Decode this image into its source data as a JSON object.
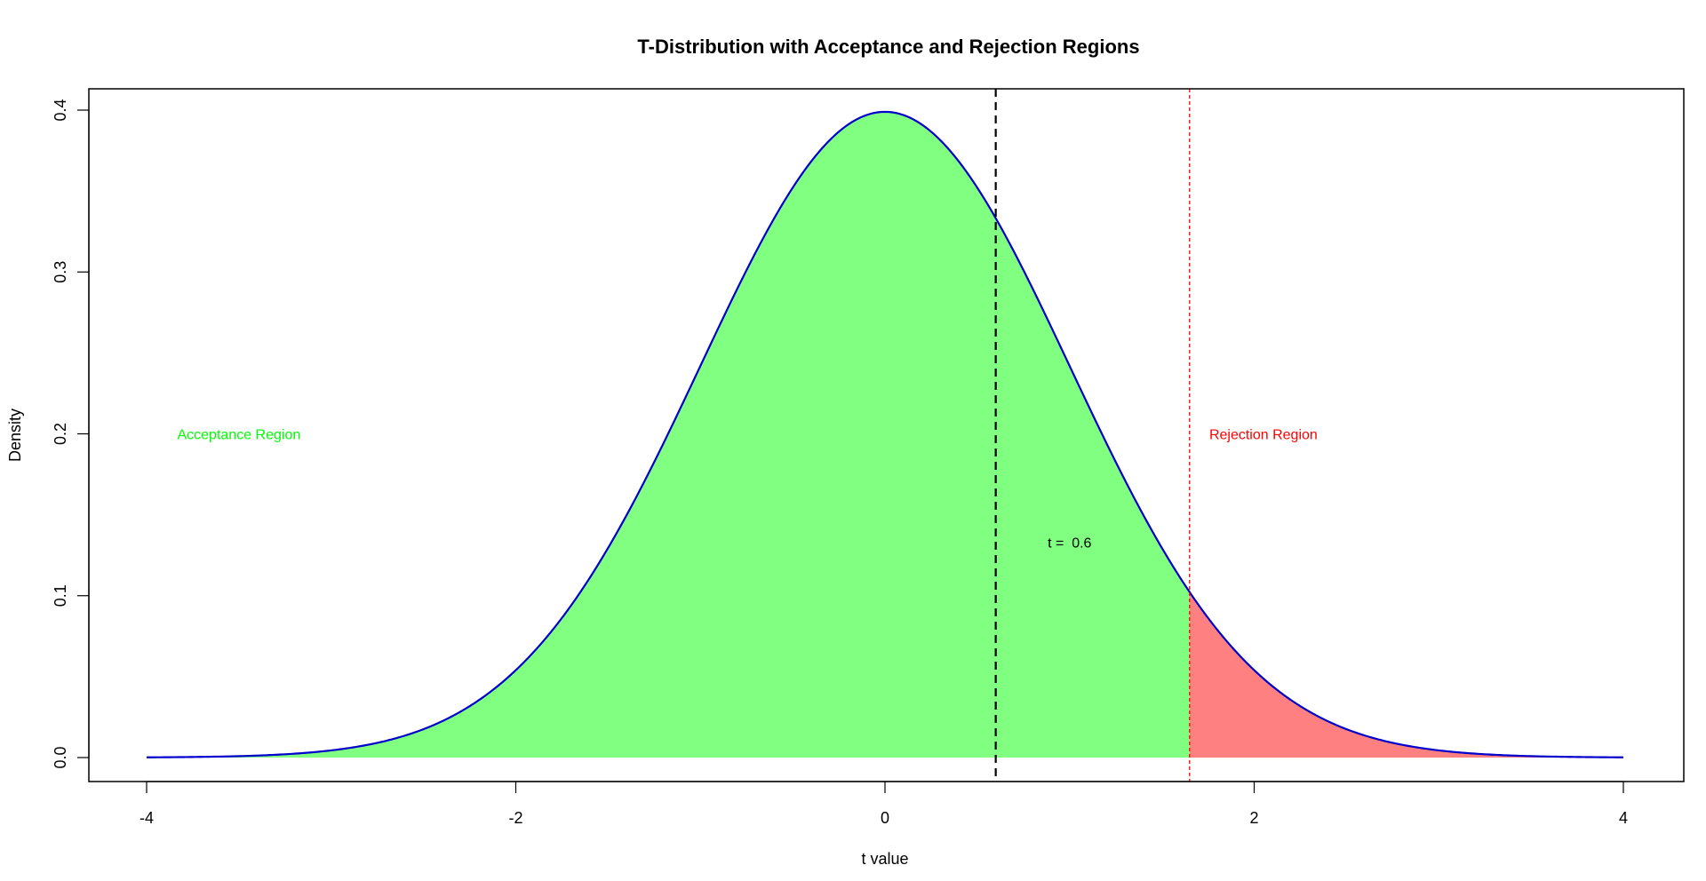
{
  "chart_data": {
    "type": "area",
    "title": "T-Distribution with Acceptance and Rejection Regions",
    "xlabel": "t value",
    "ylabel": "Density",
    "xlim": [
      -4,
      4
    ],
    "ylim": [
      0,
      0.4
    ],
    "x_ticks": [
      -4,
      -2,
      0,
      2,
      4
    ],
    "x_tick_labels": [
      "-4",
      "-2",
      "0",
      "2",
      "4"
    ],
    "y_ticks": [
      0.0,
      0.1,
      0.2,
      0.3,
      0.4
    ],
    "y_tick_labels": [
      "0.0",
      "0.1",
      "0.2",
      "0.3",
      "0.4"
    ],
    "grid": false,
    "curve_color": "#0000cd",
    "acceptance_color": "#80ff80",
    "rejection_color": "#ff8080",
    "t_statistic": 0.6,
    "t_line_color": "#000000",
    "critical_value": 1.65,
    "critical_line_color": "#ff0000",
    "annotations": {
      "acceptance": {
        "text": "Acceptance Region",
        "x": -3.5,
        "y": 0.2,
        "color": "#00ff00"
      },
      "rejection": {
        "text": "Rejection Region",
        "x": 2.05,
        "y": 0.2,
        "color": "#ff0000"
      },
      "t_label": {
        "text": "t =  0.6",
        "x": 1.0,
        "y": 0.133,
        "color": "#000000"
      }
    }
  }
}
